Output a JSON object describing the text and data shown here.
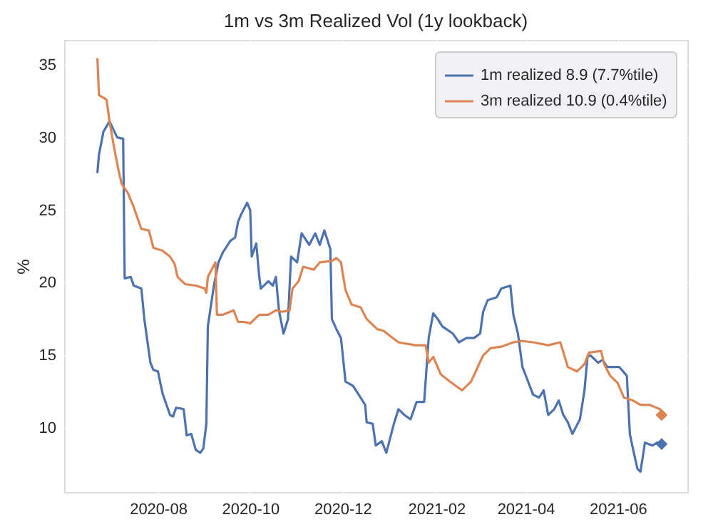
{
  "chart_data": {
    "type": "line",
    "title": "1m vs 3m Realized Vol (1y lookback)",
    "ylabel": "%",
    "xlim": [
      "2020-05-31",
      "2021-07-17"
    ],
    "xticks": [
      "2020-08",
      "2020-10",
      "2020-12",
      "2021-02",
      "2021-04",
      "2021-06"
    ],
    "ylim": [
      5.6,
      36.7
    ],
    "yticks": [
      10,
      15,
      20,
      25,
      30,
      35
    ],
    "grid": true,
    "legend": "top right",
    "series": [
      {
        "name": "1m realized 8.9 (7.7%tile)",
        "color": "#4c72b0",
        "line_style": "solid",
        "x": [
          "2020-06-22",
          "2020-06-23",
          "2020-06-26",
          "2020-06-30",
          "2020-07-05",
          "2020-07-09",
          "2020-07-10",
          "2020-07-14",
          "2020-07-16",
          "2020-07-21",
          "2020-07-23",
          "2020-07-27",
          "2020-07-29",
          "2020-08-01",
          "2020-08-04",
          "2020-08-09",
          "2020-08-11",
          "2020-08-13",
          "2020-08-18",
          "2020-08-20",
          "2020-08-23",
          "2020-08-26",
          "2020-08-29",
          "2020-08-31",
          "2020-09-02",
          "2020-09-03",
          "2020-09-07",
          "2020-09-10",
          "2020-09-13",
          "2020-09-18",
          "2020-09-21",
          "2020-09-23",
          "2020-09-25",
          "2020-09-29",
          "2020-10-01",
          "2020-10-02",
          "2020-10-05",
          "2020-10-07",
          "2020-10-08",
          "2020-10-13",
          "2020-10-16",
          "2020-10-18",
          "2020-10-20",
          "2020-10-23",
          "2020-10-26",
          "2020-10-28",
          "2020-11-01",
          "2020-11-04",
          "2020-11-09",
          "2020-11-13",
          "2020-11-16",
          "2020-11-19",
          "2020-11-23",
          "2020-11-24",
          "2020-11-27",
          "2020-11-30",
          "2020-12-03",
          "2020-12-08",
          "2020-12-16",
          "2020-12-17",
          "2020-12-21",
          "2020-12-23",
          "2020-12-27",
          "2020-12-30",
          "2021-01-04",
          "2021-01-07",
          "2021-01-11",
          "2021-01-15",
          "2021-01-19",
          "2021-01-24",
          "2021-01-27",
          "2021-01-30",
          "2021-02-02",
          "2021-02-05",
          "2021-02-12",
          "2021-02-16",
          "2021-02-21",
          "2021-02-26",
          "2021-03-02",
          "2021-03-04",
          "2021-03-07",
          "2021-03-13",
          "2021-03-16",
          "2021-03-22",
          "2021-03-24",
          "2021-03-27",
          "2021-03-30",
          "2021-04-02",
          "2021-04-06",
          "2021-04-10",
          "2021-04-13",
          "2021-04-16",
          "2021-04-20",
          "2021-04-23",
          "2021-04-26",
          "2021-04-29",
          "2021-05-02",
          "2021-05-07",
          "2021-05-10",
          "2021-05-12",
          "2021-05-14",
          "2021-05-19",
          "2021-05-22",
          "2021-05-25",
          "2021-06-02",
          "2021-06-07",
          "2021-06-09",
          "2021-06-11",
          "2021-06-14",
          "2021-06-16",
          "2021-06-19",
          "2021-06-24",
          "2021-06-27",
          "2021-06-30"
        ],
        "values": [
          27.6,
          28.8,
          30.4,
          31.1,
          30.0,
          29.9,
          20.3,
          20.4,
          19.8,
          19.6,
          17.5,
          14.5,
          14.0,
          13.9,
          12.4,
          10.9,
          10.8,
          11.4,
          11.3,
          9.5,
          9.6,
          8.5,
          8.3,
          8.6,
          10.3,
          17.0,
          19.8,
          21.4,
          22.1,
          22.9,
          23.1,
          24.2,
          24.7,
          25.5,
          25.0,
          21.8,
          22.7,
          20.4,
          19.6,
          20.1,
          19.8,
          20.4,
          18.1,
          16.5,
          17.5,
          21.8,
          21.4,
          23.4,
          22.6,
          23.4,
          22.6,
          23.6,
          22.3,
          17.5,
          16.8,
          16.2,
          13.2,
          12.9,
          11.6,
          10.4,
          10.3,
          8.8,
          9.1,
          8.3,
          10.3,
          11.3,
          10.9,
          10.6,
          11.8,
          11.8,
          16.2,
          17.9,
          17.5,
          17.0,
          16.5,
          15.9,
          16.2,
          16.2,
          16.5,
          18.0,
          18.8,
          19.0,
          19.6,
          19.8,
          17.8,
          16.5,
          14.2,
          13.4,
          12.3,
          12.1,
          12.6,
          10.9,
          11.3,
          11.9,
          10.9,
          10.4,
          9.6,
          10.6,
          12.6,
          14.9,
          15.0,
          14.5,
          14.7,
          14.2,
          14.2,
          13.6,
          9.6,
          8.6,
          7.2,
          7.0,
          9.0,
          8.8,
          9.0,
          8.9
        ]
      },
      {
        "name": "3m realized 10.9 (0.4%tile)",
        "color": "#dd8452",
        "line_style": "solid",
        "x": [
          "2020-06-22",
          "2020-06-23",
          "2020-06-28",
          "2020-06-30",
          "2020-07-03",
          "2020-07-06",
          "2020-07-08",
          "2020-07-12",
          "2020-07-16",
          "2020-07-21",
          "2020-07-26",
          "2020-07-29",
          "2020-08-04",
          "2020-08-09",
          "2020-08-12",
          "2020-08-14",
          "2020-08-19",
          "2020-08-26",
          "2020-09-01",
          "2020-09-02",
          "2020-09-03",
          "2020-09-08",
          "2020-09-09",
          "2020-09-13",
          "2020-09-20",
          "2020-09-23",
          "2020-09-27",
          "2020-10-01",
          "2020-10-07",
          "2020-10-13",
          "2020-10-18",
          "2020-10-22",
          "2020-10-27",
          "2020-10-29",
          "2020-11-02",
          "2020-11-05",
          "2020-11-12",
          "2020-11-16",
          "2020-11-24",
          "2020-11-27",
          "2020-11-30",
          "2020-12-03",
          "2020-12-07",
          "2020-12-13",
          "2020-12-17",
          "2020-12-24",
          "2020-12-28",
          "2021-01-07",
          "2021-01-18",
          "2021-01-25",
          "2021-01-27",
          "2021-01-30",
          "2021-02-04",
          "2021-02-10",
          "2021-02-18",
          "2021-02-24",
          "2021-03-04",
          "2021-03-09",
          "2021-03-16",
          "2021-03-24",
          "2021-03-29",
          "2021-04-06",
          "2021-04-16",
          "2021-04-24",
          "2021-04-29",
          "2021-05-05",
          "2021-05-10",
          "2021-05-13",
          "2021-05-21",
          "2021-05-23",
          "2021-05-27",
          "2021-06-01",
          "2021-06-05",
          "2021-06-11",
          "2021-06-16",
          "2021-06-22",
          "2021-06-29",
          "2021-06-30"
        ],
        "values": [
          35.4,
          32.9,
          32.6,
          31.1,
          29.3,
          27.7,
          26.8,
          26.2,
          25.2,
          23.7,
          23.6,
          22.4,
          22.2,
          21.8,
          21.3,
          20.4,
          19.9,
          19.8,
          19.6,
          19.3,
          20.4,
          21.4,
          17.8,
          17.8,
          18.1,
          17.3,
          17.3,
          17.2,
          17.8,
          17.8,
          18.1,
          18.0,
          18.1,
          19.6,
          20.1,
          21.1,
          20.9,
          21.4,
          21.5,
          21.7,
          21.4,
          19.5,
          18.5,
          18.3,
          17.5,
          16.8,
          16.7,
          15.9,
          15.7,
          15.7,
          14.5,
          14.9,
          13.7,
          13.2,
          12.6,
          13.2,
          15.0,
          15.5,
          15.6,
          15.9,
          16.0,
          15.9,
          15.7,
          15.9,
          14.2,
          13.9,
          14.4,
          15.2,
          15.3,
          14.4,
          13.6,
          13.1,
          12.1,
          11.9,
          11.6,
          11.6,
          11.3,
          10.9
        ]
      },
      {
        "color": "#4c72b0",
        "type": "scatter",
        "marker": "diamond",
        "x": [
          "2021-06-30"
        ],
        "values": [
          8.9
        ]
      },
      {
        "color": "#dd8452",
        "type": "scatter",
        "marker": "diamond",
        "x": [
          "2021-06-30"
        ],
        "values": [
          10.9
        ]
      }
    ]
  }
}
